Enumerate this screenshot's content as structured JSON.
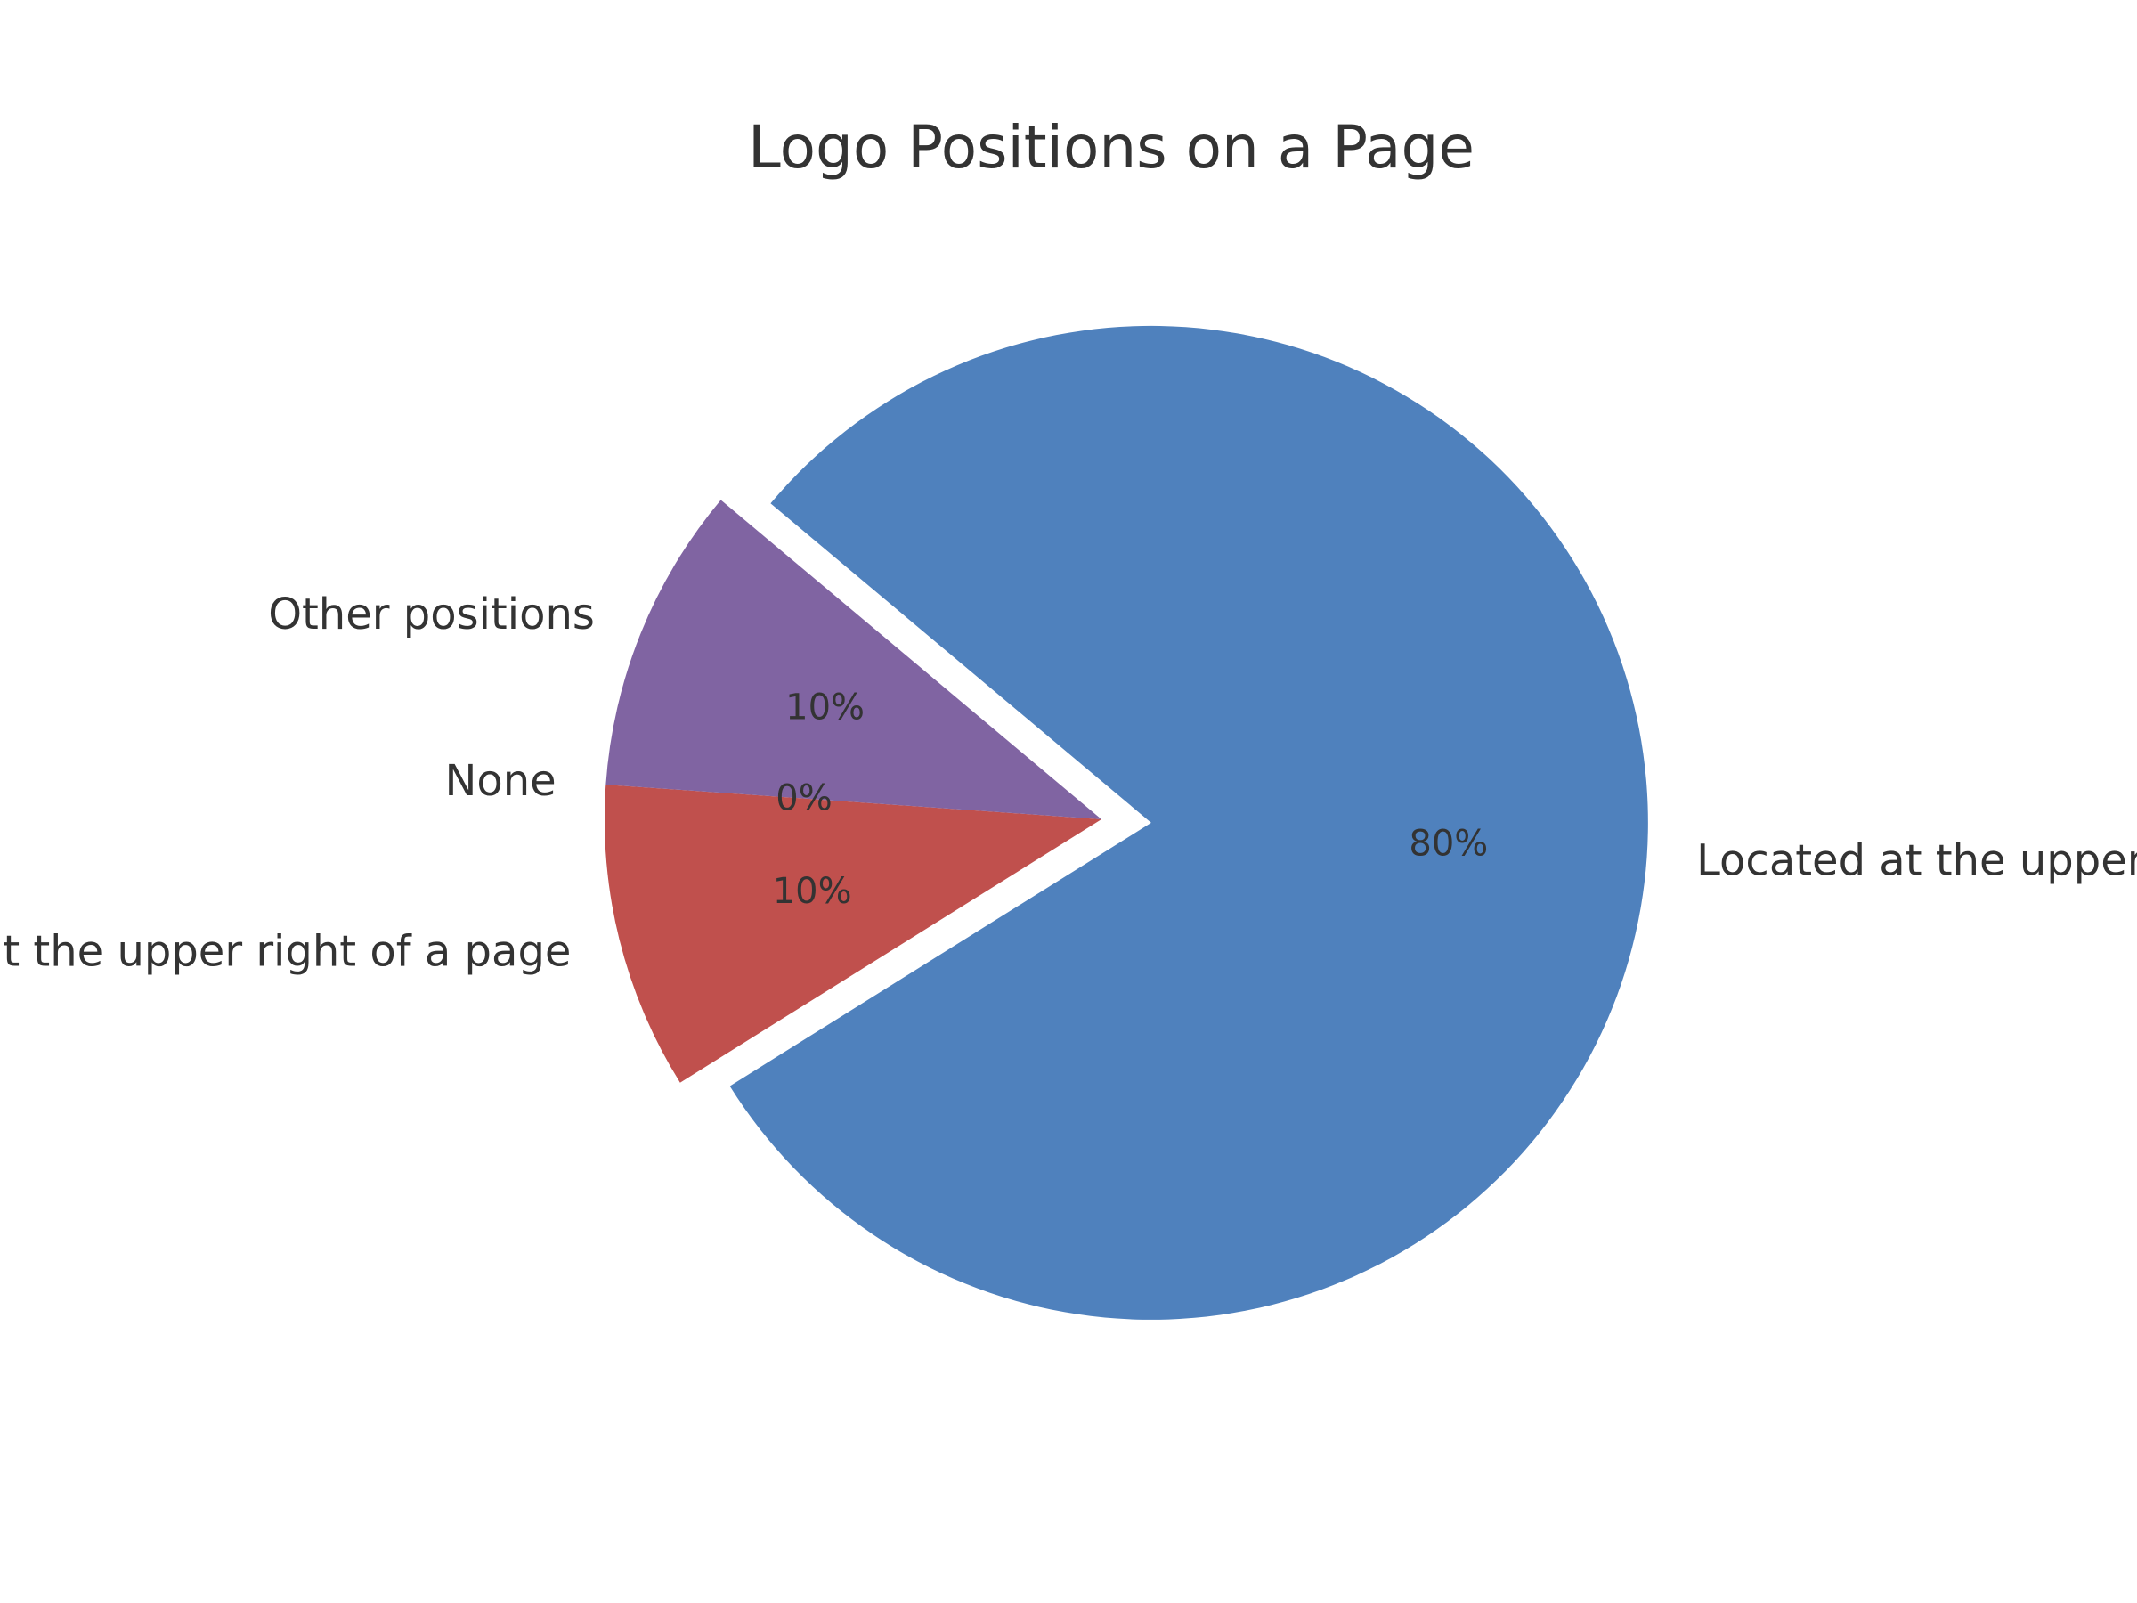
{
  "chart_data": {
    "type": "pie",
    "title": "Logo Positions on a Page",
    "slices": [
      {
        "label": "Located at the upper left of a page",
        "value": 80,
        "pct_text": "80%",
        "color": "#4f81bd",
        "explode": true
      },
      {
        "label": "Located at the upper right of a page",
        "value": 10,
        "pct_text": "10%",
        "color": "#c0504d",
        "explode": false
      },
      {
        "label": "None",
        "value": 0,
        "pct_text": "0%",
        "color": "#9bbb59",
        "explode": false
      },
      {
        "label": "Other positions",
        "value": 10,
        "pct_text": "10%",
        "color": "#8064a2",
        "explode": false
      }
    ],
    "start_angle": 140,
    "direction": "clockwise",
    "grid": false,
    "legend": "none"
  }
}
